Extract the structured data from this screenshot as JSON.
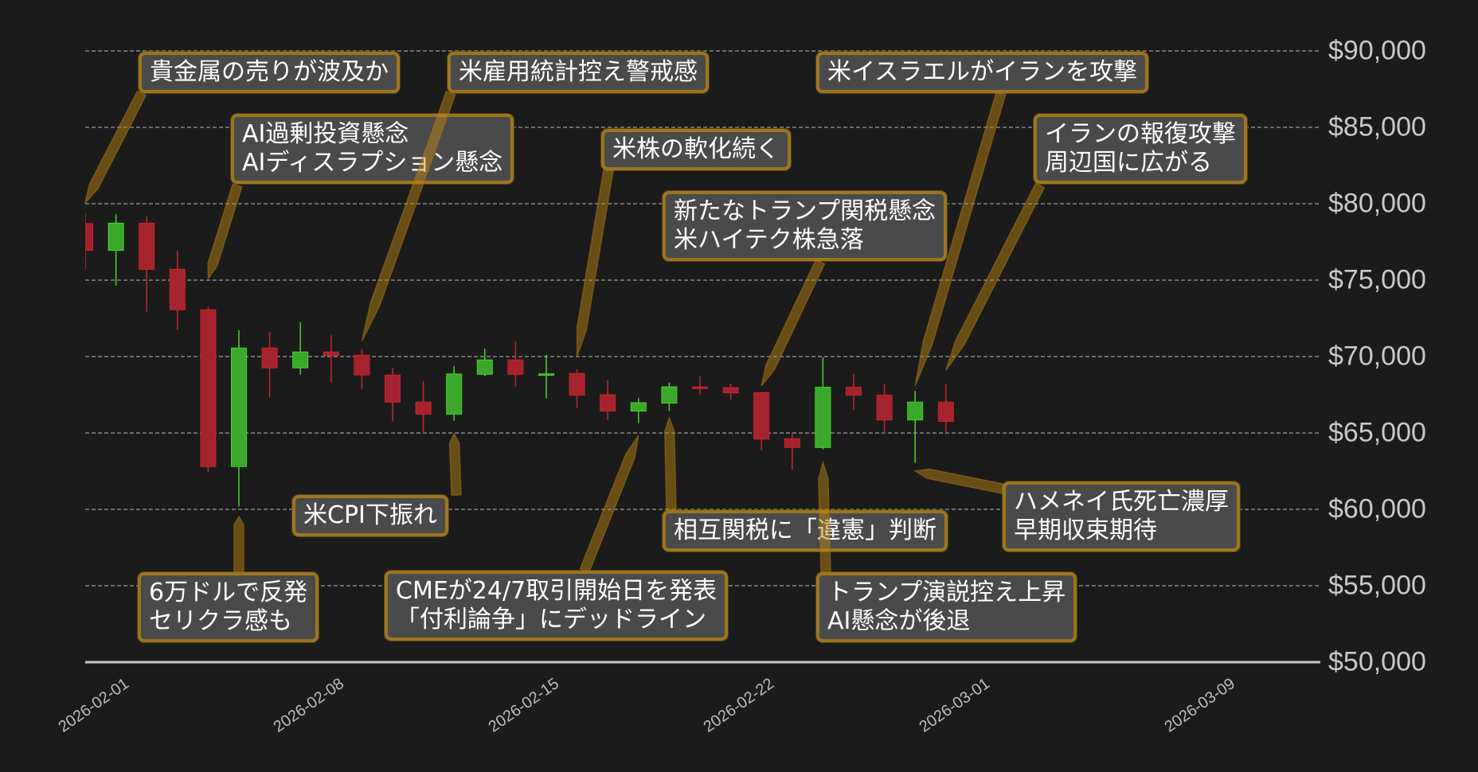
{
  "chart_data": {
    "type": "candlestick",
    "title": "",
    "xlabel": "",
    "ylabel": "",
    "ylim": [
      50000,
      90000
    ],
    "grid": true,
    "colors": {
      "up": "#3aa82a",
      "down": "#a5232d",
      "background": "#1b1b1b",
      "annotation_border": "#aa7d19",
      "annotation_fill": "#4a4a4a"
    },
    "y_ticks": [
      "$50,000",
      "$55,000",
      "$60,000",
      "$65,000",
      "$70,000",
      "$75,000",
      "$80,000",
      "$85,000",
      "$90,000"
    ],
    "y_tick_values": [
      50000,
      55000,
      60000,
      65000,
      70000,
      75000,
      80000,
      85000,
      90000
    ],
    "x_ticks": [
      "2026-02-01",
      "2026-02-08",
      "2026-02-15",
      "2026-02-22",
      "2026-03-01",
      "2026-03-09"
    ],
    "candles": [
      {
        "date": "2026-02-01",
        "open": 78700,
        "high": 79380,
        "low": 75700,
        "close": 76950
      },
      {
        "date": "2026-02-02",
        "open": 76950,
        "high": 79320,
        "low": 74650,
        "close": 78730
      },
      {
        "date": "2026-02-03",
        "open": 78730,
        "high": 79170,
        "low": 72940,
        "close": 75710
      },
      {
        "date": "2026-02-04",
        "open": 75710,
        "high": 76930,
        "low": 71740,
        "close": 73060
      },
      {
        "date": "2026-02-05",
        "open": 73060,
        "high": 73230,
        "low": 62420,
        "close": 62800
      },
      {
        "date": "2026-02-06",
        "open": 62800,
        "high": 71720,
        "low": 60180,
        "close": 70560
      },
      {
        "date": "2026-02-07",
        "open": 70560,
        "high": 71620,
        "low": 67310,
        "close": 69260
      },
      {
        "date": "2026-02-08",
        "open": 69260,
        "high": 72240,
        "low": 68820,
        "close": 70300
      },
      {
        "date": "2026-02-09",
        "open": 70300,
        "high": 71410,
        "low": 68300,
        "close": 70070
      },
      {
        "date": "2026-02-10",
        "open": 70090,
        "high": 70470,
        "low": 67880,
        "close": 68790
      },
      {
        "date": "2026-02-11",
        "open": 68790,
        "high": 69270,
        "low": 65750,
        "close": 67020
      },
      {
        "date": "2026-02-12",
        "open": 67020,
        "high": 68390,
        "low": 65050,
        "close": 66230
      },
      {
        "date": "2026-02-13",
        "open": 66230,
        "high": 69380,
        "low": 65800,
        "close": 68860
      },
      {
        "date": "2026-02-14",
        "open": 68840,
        "high": 70520,
        "low": 68720,
        "close": 69780
      },
      {
        "date": "2026-02-15",
        "open": 69780,
        "high": 70990,
        "low": 68040,
        "close": 68840
      },
      {
        "date": "2026-02-16",
        "open": 68850,
        "high": 70110,
        "low": 67260,
        "close": 68870
      },
      {
        "date": "2026-02-17",
        "open": 68890,
        "high": 69170,
        "low": 66630,
        "close": 67470
      },
      {
        "date": "2026-02-18",
        "open": 67500,
        "high": 68440,
        "low": 65850,
        "close": 66430
      },
      {
        "date": "2026-02-19",
        "open": 66430,
        "high": 67290,
        "low": 65640,
        "close": 66980
      },
      {
        "date": "2026-02-20",
        "open": 66950,
        "high": 68300,
        "low": 66430,
        "close": 68020
      },
      {
        "date": "2026-02-21",
        "open": 68010,
        "high": 68700,
        "low": 67520,
        "close": 67970
      },
      {
        "date": "2026-02-22",
        "open": 67970,
        "high": 68230,
        "low": 67160,
        "close": 67620
      },
      {
        "date": "2026-02-23",
        "open": 67640,
        "high": 67700,
        "low": 63870,
        "close": 64600
      },
      {
        "date": "2026-02-24",
        "open": 64620,
        "high": 65000,
        "low": 62570,
        "close": 64050
      },
      {
        "date": "2026-02-25",
        "open": 64050,
        "high": 69950,
        "low": 63910,
        "close": 67990
      },
      {
        "date": "2026-02-26",
        "open": 67990,
        "high": 68860,
        "low": 66510,
        "close": 67470
      },
      {
        "date": "2026-02-27",
        "open": 67480,
        "high": 68230,
        "low": 64950,
        "close": 65850
      },
      {
        "date": "2026-02-28",
        "open": 65850,
        "high": 67750,
        "low": 63040,
        "close": 67020
      },
      {
        "date": "2026-03-01",
        "open": 67020,
        "high": 68180,
        "low": 65000,
        "close": 65750
      }
    ],
    "annotations": [
      {
        "lines": [
          "貴金属の売りが波及か"
        ],
        "date": "2026-02-01",
        "price": 80050
      },
      {
        "lines": [
          "AI過剰投資懸念",
          "AIディスラプション懸念"
        ],
        "date": "2026-02-05",
        "price": 75100
      },
      {
        "lines": [
          "米雇用統計控え警戒感"
        ],
        "date": "2026-02-10",
        "price": 71000
      },
      {
        "lines": [
          "米株の軟化続く"
        ],
        "date": "2026-02-17",
        "price": 70000
      },
      {
        "lines": [
          "新たなトランプ関税懸念",
          "米ハイテク株急落"
        ],
        "date": "2026-02-23",
        "price": 68080
      },
      {
        "lines": [
          "米イスラエルがイランを攻撃"
        ],
        "date": "2026-02-28",
        "price": 68080
      },
      {
        "lines": [
          "イランの報復攻撃",
          "周辺国に広がる"
        ],
        "date": "2026-03-01",
        "price": 69100
      },
      {
        "lines": [
          "米CPI下振れ"
        ],
        "date": "2026-02-13",
        "price": 64950
      },
      {
        "lines": [
          "6万ドルで反発",
          "セリクラ感も"
        ],
        "date": "2026-02-06",
        "price": 59530
      },
      {
        "lines": [
          "CMEが24/7取引開始日を発表",
          "「付利論争」にデッドライン"
        ],
        "date": "2026-02-19",
        "price": 64850
      },
      {
        "lines": [
          "相互関税に「違憲」判断"
        ],
        "date": "2026-02-20",
        "price": 66000
      },
      {
        "lines": [
          "トランプ演説控え上昇",
          "AI懸念が後退"
        ],
        "date": "2026-02-25",
        "price": 63080
      },
      {
        "lines": [
          "ハメネイ氏死亡濃厚",
          "早期収束期待"
        ],
        "date": "2026-02-28",
        "price": 62500
      }
    ]
  }
}
